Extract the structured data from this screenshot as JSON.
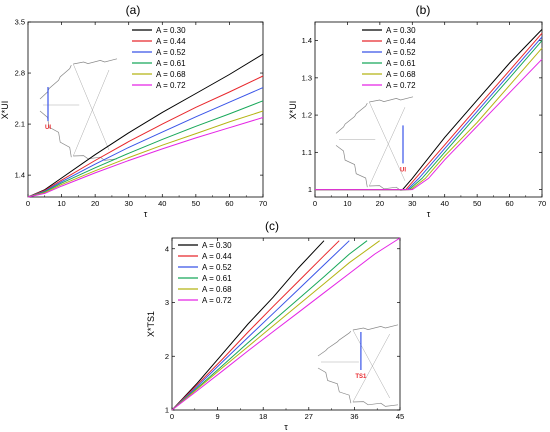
{
  "chart_data": [
    {
      "type": "line",
      "title": "(a)",
      "xlabel": "τ",
      "ylabel": "X*UI",
      "xlim": [
        0,
        70
      ],
      "ylim": [
        1.1,
        3.5
      ],
      "xticks": [
        "0",
        "10",
        "20",
        "30",
        "40",
        "50",
        "60",
        "70"
      ],
      "yticks": [
        "1.4",
        "2.1",
        "2.8",
        "3.5"
      ],
      "legend_position": "top-right",
      "inset_label": "UI",
      "series": [
        {
          "name": "A = 0.30",
          "color": "#000000",
          "x": [
            0,
            5,
            10,
            20,
            30,
            40,
            50,
            60,
            70
          ],
          "y": [
            1.1,
            1.2,
            1.36,
            1.68,
            1.98,
            2.26,
            2.52,
            2.78,
            3.06
          ]
        },
        {
          "name": "A = 0.44",
          "color": "#e8272c",
          "x": [
            0,
            5,
            10,
            20,
            30,
            40,
            50,
            60,
            70
          ],
          "y": [
            1.1,
            1.19,
            1.33,
            1.6,
            1.86,
            2.1,
            2.33,
            2.54,
            2.76
          ]
        },
        {
          "name": "A = 0.52",
          "color": "#3954e8",
          "x": [
            0,
            5,
            10,
            20,
            30,
            40,
            50,
            60,
            70
          ],
          "y": [
            1.1,
            1.18,
            1.31,
            1.55,
            1.78,
            1.99,
            2.2,
            2.4,
            2.6
          ]
        },
        {
          "name": "A = 0.61",
          "color": "#18a85a",
          "x": [
            0,
            5,
            10,
            20,
            30,
            40,
            50,
            60,
            70
          ],
          "y": [
            1.1,
            1.17,
            1.29,
            1.5,
            1.7,
            1.89,
            2.07,
            2.24,
            2.42
          ]
        },
        {
          "name": "A = 0.68",
          "color": "#b5b514",
          "x": [
            0,
            5,
            10,
            20,
            30,
            40,
            50,
            60,
            70
          ],
          "y": [
            1.1,
            1.16,
            1.27,
            1.46,
            1.64,
            1.81,
            1.97,
            2.13,
            2.28
          ]
        },
        {
          "name": "A = 0.72",
          "color": "#e524e5",
          "x": [
            0,
            5,
            10,
            20,
            30,
            40,
            50,
            60,
            70
          ],
          "y": [
            1.1,
            1.15,
            1.25,
            1.43,
            1.6,
            1.76,
            1.91,
            2.05,
            2.19
          ]
        }
      ]
    },
    {
      "type": "line",
      "title": "(b)",
      "xlabel": "τ",
      "ylabel": "X*UI",
      "xlim": [
        0,
        70
      ],
      "ylim": [
        0.98,
        1.45
      ],
      "xticks": [
        "0",
        "10",
        "20",
        "30",
        "40",
        "50",
        "60",
        "70"
      ],
      "yticks": [
        "1",
        "1.1",
        "1.2",
        "1.3",
        "1.4"
      ],
      "legend_position": "top-right",
      "inset_label": "UI",
      "series": [
        {
          "name": "A = 0.30",
          "color": "#000000",
          "x": [
            0,
            27,
            30,
            40,
            50,
            60,
            70
          ],
          "y": [
            1.0,
            1.0,
            1.03,
            1.14,
            1.24,
            1.34,
            1.43
          ]
        },
        {
          "name": "A = 0.44",
          "color": "#e8272c",
          "x": [
            0,
            28,
            31,
            40,
            50,
            60,
            70
          ],
          "y": [
            1.0,
            1.0,
            1.03,
            1.12,
            1.22,
            1.32,
            1.42
          ]
        },
        {
          "name": "A = 0.52",
          "color": "#3954e8",
          "x": [
            0,
            28.5,
            32,
            40,
            50,
            60,
            70
          ],
          "y": [
            1.0,
            1.0,
            1.03,
            1.11,
            1.21,
            1.31,
            1.41
          ]
        },
        {
          "name": "A = 0.61",
          "color": "#18a85a",
          "x": [
            0,
            29,
            33,
            40,
            50,
            60,
            70
          ],
          "y": [
            1.0,
            1.0,
            1.03,
            1.1,
            1.2,
            1.3,
            1.4
          ]
        },
        {
          "name": "A = 0.68",
          "color": "#b5b514",
          "x": [
            0,
            29.5,
            34,
            40,
            50,
            60,
            70
          ],
          "y": [
            1.0,
            1.0,
            1.03,
            1.09,
            1.18,
            1.28,
            1.38
          ]
        },
        {
          "name": "A = 0.72",
          "color": "#e524e5",
          "x": [
            0,
            30,
            35,
            40,
            50,
            60,
            70
          ],
          "y": [
            1.0,
            1.0,
            1.03,
            1.08,
            1.17,
            1.26,
            1.35
          ]
        }
      ]
    },
    {
      "type": "line",
      "title": "(c)",
      "xlabel": "τ",
      "ylabel": "X*TS1",
      "xlim": [
        0,
        45
      ],
      "ylim": [
        1.0,
        4.2
      ],
      "xticks": [
        "0",
        "9",
        "18",
        "27",
        "36",
        "45"
      ],
      "yticks": [
        "1",
        "2",
        "3",
        "4"
      ],
      "legend_position": "top-left",
      "inset_label": "TS1",
      "series": [
        {
          "name": "A = 0.30",
          "color": "#000000",
          "x": [
            0,
            5,
            10,
            15,
            20,
            25,
            30
          ],
          "y": [
            1.0,
            1.5,
            2.05,
            2.6,
            3.1,
            3.65,
            4.15
          ]
        },
        {
          "name": "A = 0.44",
          "color": "#e8272c",
          "x": [
            0,
            5,
            10,
            15,
            20,
            25,
            30,
            33
          ],
          "y": [
            1.0,
            1.47,
            1.95,
            2.45,
            2.93,
            3.4,
            3.87,
            4.15
          ]
        },
        {
          "name": "A = 0.52",
          "color": "#3954e8",
          "x": [
            0,
            5,
            10,
            15,
            20,
            25,
            30,
            35
          ],
          "y": [
            1.0,
            1.44,
            1.9,
            2.35,
            2.8,
            3.25,
            3.7,
            4.15
          ]
        },
        {
          "name": "A = 0.61",
          "color": "#18a85a",
          "x": [
            0,
            5,
            10,
            15,
            20,
            25,
            30,
            35,
            38.5
          ],
          "y": [
            1.0,
            1.41,
            1.83,
            2.25,
            2.66,
            3.07,
            3.48,
            3.9,
            4.15
          ]
        },
        {
          "name": "A = 0.68",
          "color": "#b5b514",
          "x": [
            0,
            5,
            10,
            15,
            20,
            25,
            30,
            35,
            41
          ],
          "y": [
            1.0,
            1.39,
            1.79,
            2.18,
            2.57,
            2.96,
            3.35,
            3.74,
            4.15
          ]
        },
        {
          "name": "A = 0.72",
          "color": "#e524e5",
          "x": [
            0,
            5,
            10,
            15,
            20,
            25,
            30,
            35,
            40,
            45
          ],
          "y": [
            1.0,
            1.36,
            1.73,
            2.1,
            2.46,
            2.82,
            3.18,
            3.54,
            3.9,
            4.2
          ]
        }
      ]
    }
  ]
}
